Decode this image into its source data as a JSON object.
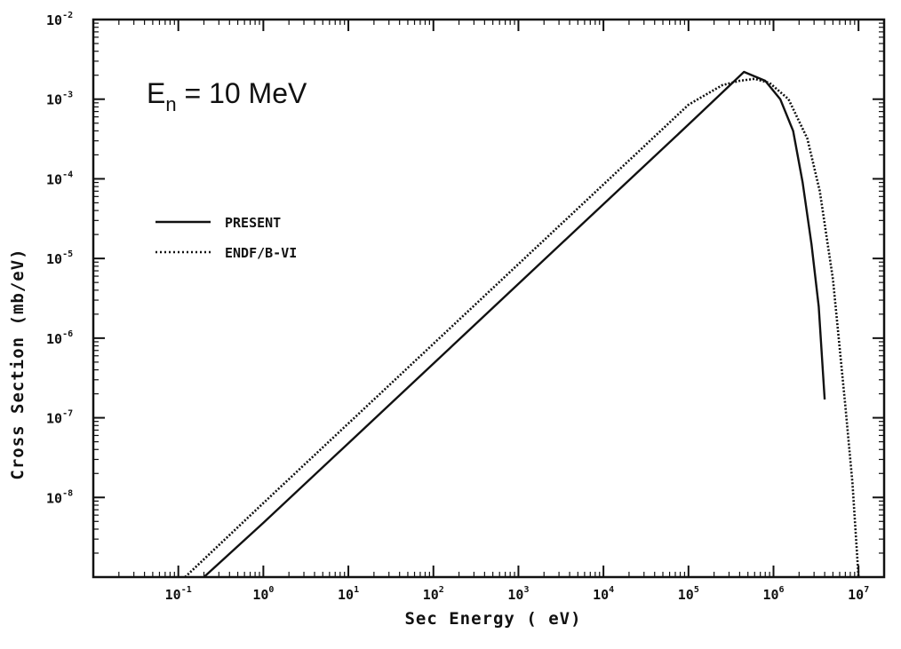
{
  "chart_data": {
    "type": "line",
    "xlabel": "Sec Energy ( eV)",
    "ylabel": "Cross Section (mb/eV)",
    "x_scale": "log",
    "y_scale": "log",
    "xlim": [
      0.01,
      20000000
    ],
    "ylim": [
      1e-09,
      0.01
    ],
    "x_tick_values": [
      0.1,
      1,
      10,
      100,
      1000,
      10000,
      100000,
      1000000,
      10000000
    ],
    "x_ticks": [
      {
        "base": "10",
        "exp": "-1"
      },
      {
        "base": "10",
        "exp": "0"
      },
      {
        "base": "10",
        "exp": "1"
      },
      {
        "base": "10",
        "exp": "2"
      },
      {
        "base": "10",
        "exp": "3"
      },
      {
        "base": "10",
        "exp": "4"
      },
      {
        "base": "10",
        "exp": "5"
      },
      {
        "base": "10",
        "exp": "6"
      },
      {
        "base": "10",
        "exp": "7"
      }
    ],
    "y_tick_values": [
      0.01,
      0.001,
      0.0001,
      1e-05,
      1e-06,
      1e-07,
      1e-08
    ],
    "y_ticks": [
      {
        "base": "10",
        "exp": "-2"
      },
      {
        "base": "10",
        "exp": "-3"
      },
      {
        "base": "10",
        "exp": "-4"
      },
      {
        "base": "10",
        "exp": "-5"
      },
      {
        "base": "10",
        "exp": "-6"
      },
      {
        "base": "10",
        "exp": "-7"
      },
      {
        "base": "10",
        "exp": "-8"
      }
    ],
    "annotation": {
      "main": "E",
      "sub": "n",
      "rest": " = 10 MeV"
    },
    "legend_position": "left-middle",
    "grid": false,
    "series": [
      {
        "name": "PRESENT",
        "style": "solid",
        "points": [
          [
            0.2,
            1e-09
          ],
          [
            1,
            4.8e-09
          ],
          [
            10,
            4.8e-08
          ],
          [
            100,
            4.8e-07
          ],
          [
            1000,
            4.8e-06
          ],
          [
            10000,
            4.8e-05
          ],
          [
            100000,
            0.00048
          ],
          [
            450000,
            0.0022
          ],
          [
            800000,
            0.0017
          ],
          [
            1200000,
            0.001
          ],
          [
            1700000,
            0.0004
          ],
          [
            2200000,
            9e-05
          ],
          [
            2800000,
            1.5e-05
          ],
          [
            3400000,
            2.5e-06
          ],
          [
            4000000,
            1.7e-07
          ]
        ]
      },
      {
        "name": "ENDF/B-VI",
        "style": "dotted",
        "points": [
          [
            0.12,
            1e-09
          ],
          [
            1,
            8.5e-09
          ],
          [
            10,
            8.5e-08
          ],
          [
            100,
            8.5e-07
          ],
          [
            1000,
            8.5e-06
          ],
          [
            10000,
            8.5e-05
          ],
          [
            100000,
            0.00085
          ],
          [
            250000,
            0.0015
          ],
          [
            400000,
            0.0017
          ],
          [
            600000,
            0.0018
          ],
          [
            900000,
            0.0016
          ],
          [
            1500000,
            0.001
          ],
          [
            2500000,
            0.00032
          ],
          [
            3500000,
            7e-05
          ],
          [
            5000000,
            5.5e-06
          ],
          [
            7000000,
            1.4e-07
          ],
          [
            8500000,
            1.5e-08
          ],
          [
            10000000,
            1e-09
          ]
        ]
      }
    ]
  }
}
